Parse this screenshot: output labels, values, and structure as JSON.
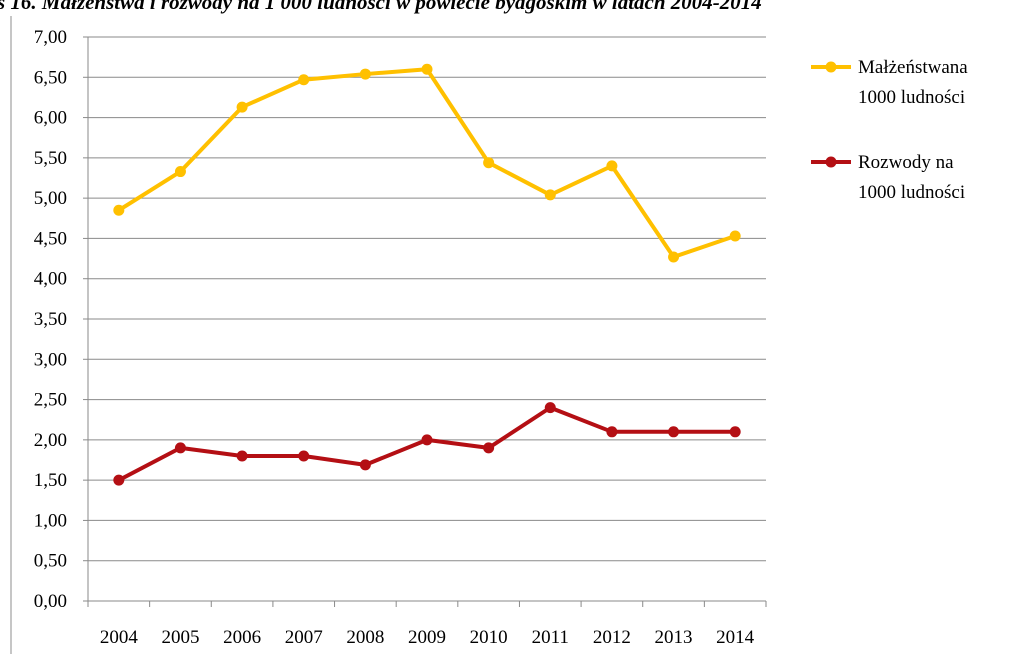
{
  "chart_data": {
    "type": "line",
    "title": "s 16. Małżeństwa i rozwody na 1 000 ludności w powiecie bydgoskim w latach 2004-2014",
    "categories": [
      "2004",
      "2005",
      "2006",
      "2007",
      "2008",
      "2009",
      "2010",
      "2011",
      "2012",
      "2013",
      "2014"
    ],
    "y_tick_labels": [
      "0,00",
      "0,50",
      "1,00",
      "1,50",
      "2,00",
      "2,50",
      "3,00",
      "3,50",
      "4,00",
      "4,50",
      "5,00",
      "5,50",
      "6,00",
      "6,50",
      "7,00"
    ],
    "ylim": [
      0,
      7
    ],
    "ystep": 0.5,
    "grid": true,
    "legend_position": "right",
    "series": [
      {
        "name_lines": [
          "Małżeństwana",
          "1000 ludności"
        ],
        "color": "#FFC000",
        "values": [
          4.85,
          5.33,
          6.13,
          6.47,
          6.54,
          6.6,
          5.44,
          5.04,
          5.4,
          4.27,
          4.53
        ]
      },
      {
        "name_lines": [
          "Rozwody na",
          "1000 ludności"
        ],
        "color": "#B40F14",
        "values": [
          1.5,
          1.9,
          1.8,
          1.8,
          1.69,
          2.0,
          1.9,
          2.4,
          2.1,
          2.1,
          2.1
        ]
      }
    ]
  }
}
